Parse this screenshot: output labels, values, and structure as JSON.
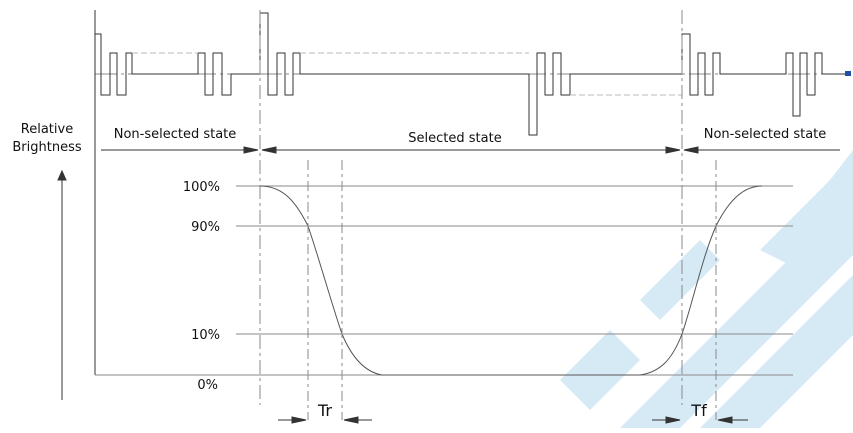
{
  "labels": {
    "y_axis_line1": "Relative",
    "y_axis_line2": "Brightness",
    "state_left": "Non-selected state",
    "state_middle": "Selected state",
    "state_right": "Non-selected state",
    "level_100": "100%",
    "level_90": "90%",
    "level_10": "10%",
    "level_0": "0%",
    "rise_time": "Tr",
    "fall_time": "Tf"
  },
  "colors": {
    "line": "#333333",
    "grid": "#8a8a8a",
    "curve": "#555555",
    "watermark": "#d6eaf6",
    "arrow_marker": "#1f4fa6"
  }
}
